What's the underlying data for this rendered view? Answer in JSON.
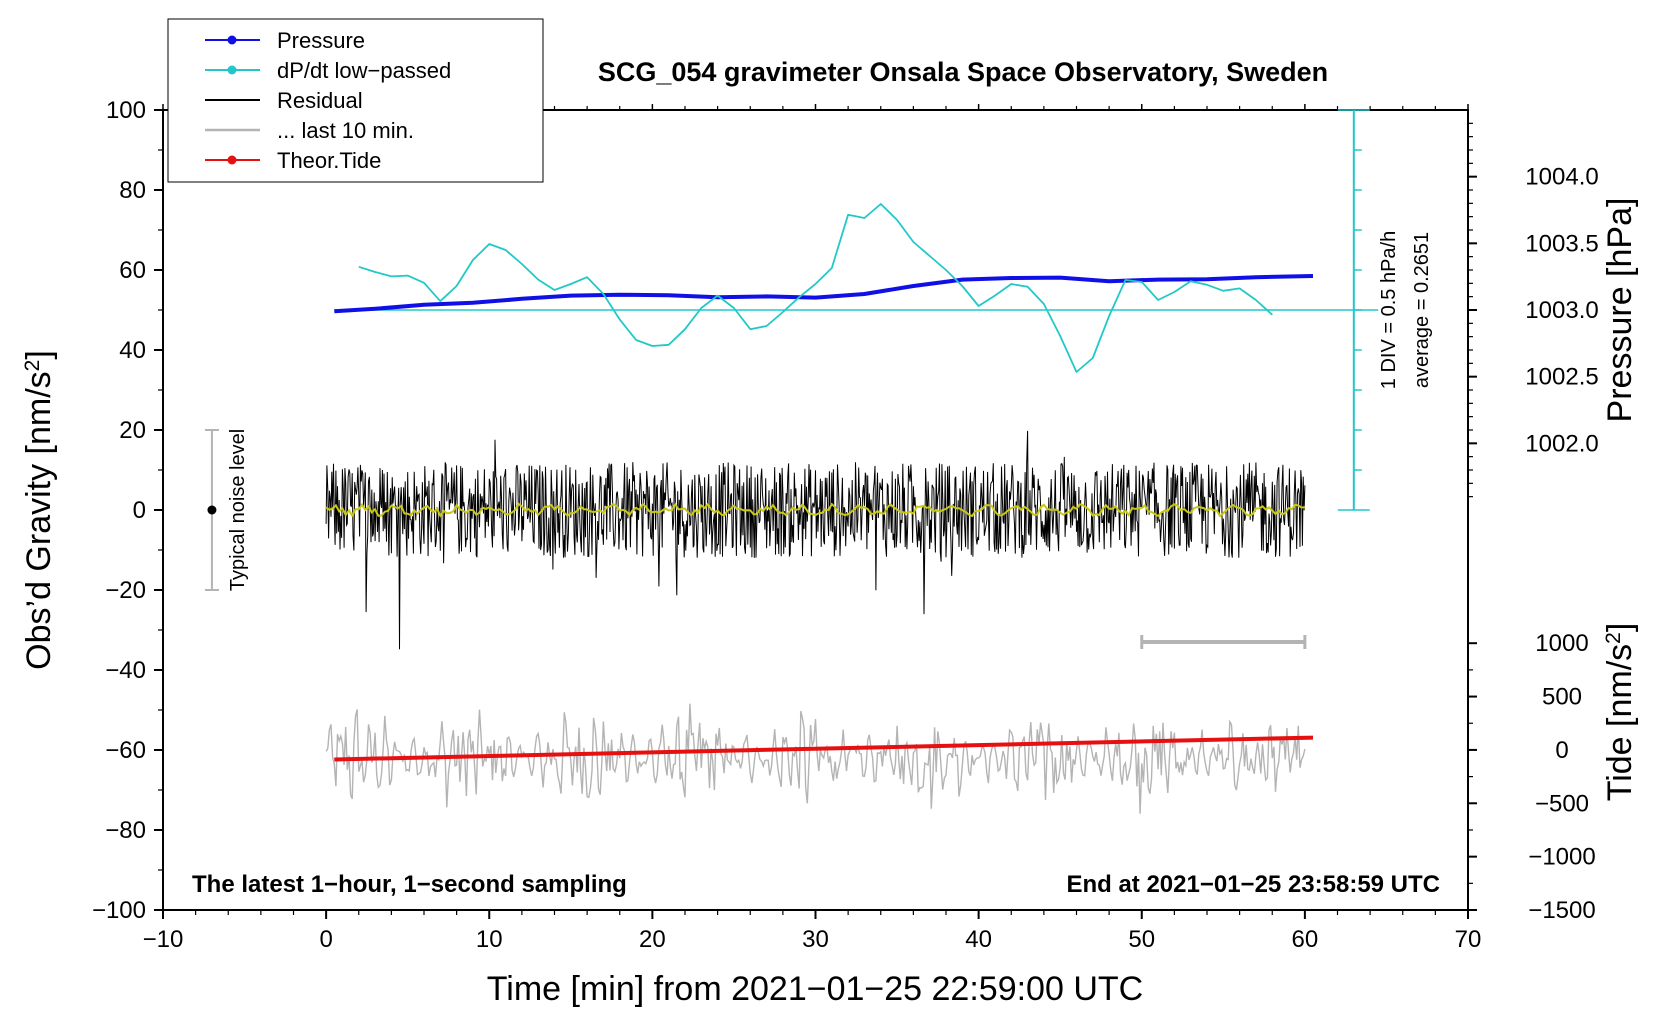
{
  "chart_data": {
    "type": "line",
    "title": "SCG_054 gravimeter Onsala Space Observatory, Sweden",
    "xlabel": "Time [min] from 2021−01−25 22:59:00 UTC",
    "ylabel": "Obs’d Gravity [nm/s",
    "ylabel_superscript": "2",
    "ylabel_suffix": "]",
    "pressure_label": "Pressure [hPa]",
    "tide_label": "Tide [nm/s",
    "tide_superscript": "2",
    "tide_suffix": "]",
    "xlim": [
      -10,
      70
    ],
    "ylim": [
      -100,
      100
    ],
    "x_ticks": [
      -10,
      0,
      10,
      20,
      30,
      40,
      50,
      60,
      70
    ],
    "x_tick_labels": [
      "−10",
      "0",
      "10",
      "20",
      "30",
      "40",
      "50",
      "60",
      "70"
    ],
    "y_ticks": [
      -100,
      -80,
      -60,
      -40,
      -20,
      0,
      20,
      40,
      60,
      80,
      100
    ],
    "y_tick_labels": [
      "−100",
      "−80",
      "−60",
      "−40",
      "−20",
      "0",
      "20",
      "40",
      "60",
      "80",
      "100"
    ],
    "pressure_axis": {
      "ticks": [
        1002.0,
        1002.5,
        1003.0,
        1003.5,
        1004.0
      ],
      "tick_labels": [
        "1002.0",
        "1002.5",
        "1003.0",
        "1003.5",
        "1004.0"
      ],
      "range": [
        1001.5,
        1004.5
      ]
    },
    "tide_axis": {
      "ticks": [
        -1500,
        -1000,
        -500,
        0,
        500,
        1000
      ],
      "tick_labels": [
        "−1500",
        "−1000",
        "−500",
        "0",
        "500",
        "1000"
      ],
      "range": [
        -1500,
        1000
      ]
    },
    "legend": [
      {
        "label": "Pressure",
        "color": "#1010e6",
        "style": "line-marker"
      },
      {
        "label": "dP/dt low−passed",
        "color": "#22c8c8",
        "style": "line-marker"
      },
      {
        "label": "Residual",
        "color": "#000000",
        "style": "line"
      },
      {
        "label": "... last 10 min.",
        "color": "#b4b4b4",
        "style": "line"
      },
      {
        "label": "Theor.Tide",
        "color": "#e61010",
        "style": "line-marker"
      }
    ],
    "annotations": {
      "noise_label": "Typical noise level",
      "noise_range": [
        -20,
        20
      ],
      "noise_x": -7,
      "dpdt_scale": "1 DIV = 0.5 hPa/h",
      "dpdt_average": "average = 0.2651",
      "dpdt_scale_x": 63,
      "dpdt_scale_range": [
        0,
        100
      ],
      "dpdt_baseline_y": 50,
      "last10_bar_x": [
        50,
        60
      ],
      "last10_bar_y": -33,
      "bottom_left": "The latest 1−hour, 1−second sampling",
      "bottom_right": "End at 2021−01−25 23:58:59 UTC"
    },
    "series": [
      {
        "name": "Pressure",
        "color": "#1010e6",
        "axis": "gravity",
        "x": [
          0.5,
          3,
          6,
          9,
          12,
          15,
          18,
          21,
          24,
          27,
          30,
          33,
          36,
          39,
          42,
          45,
          48,
          51,
          54,
          57,
          60.5
        ],
        "y": [
          49.7,
          50.3,
          51.3,
          51.8,
          52.8,
          53.6,
          53.8,
          53.7,
          53.2,
          53.4,
          53.1,
          54.0,
          56.0,
          57.6,
          58.0,
          58.1,
          57.2,
          57.6,
          57.7,
          58.2,
          58.5
        ]
      },
      {
        "name": "dP/dt low−passed",
        "color": "#22c8c8",
        "axis": "gravity",
        "x": [
          2,
          3,
          4,
          5,
          6,
          7,
          8,
          9,
          10,
          11,
          12,
          13,
          14,
          15,
          16,
          17,
          18,
          19,
          20,
          21,
          22,
          23,
          24,
          25,
          26,
          27,
          28,
          29,
          30,
          31,
          32,
          33,
          34,
          35,
          36,
          37,
          38,
          39,
          40,
          41,
          42,
          43,
          44,
          45,
          46,
          47,
          48,
          49,
          50,
          51,
          52,
          53,
          54,
          55,
          56,
          57,
          58
        ],
        "y": [
          60.8,
          59.5,
          58.4,
          58.6,
          56.8,
          52.2,
          56.0,
          62.5,
          66.5,
          65.0,
          61.5,
          57.6,
          55.0,
          56.5,
          58.2,
          54.0,
          47.6,
          42.5,
          41.0,
          41.3,
          45.2,
          50.5,
          53.6,
          50.5,
          45.2,
          46.0,
          49.5,
          53.2,
          56.5,
          60.5,
          73.8,
          73.0,
          76.5,
          72.5,
          67.0,
          63.5,
          60.0,
          56.0,
          51.0,
          53.6,
          56.5,
          55.8,
          51.5,
          43.5,
          34.5,
          38.0,
          48.5,
          57.5,
          57.0,
          52.5,
          54.5,
          57.2,
          56.3,
          54.8,
          55.4,
          52.5,
          48.8
        ]
      },
      {
        "name": "Theor.Tide",
        "color": "#e61010",
        "axis": "tide",
        "x": [
          0.5,
          60.5
        ],
        "y": [
          -90,
          115
        ]
      }
    ]
  }
}
